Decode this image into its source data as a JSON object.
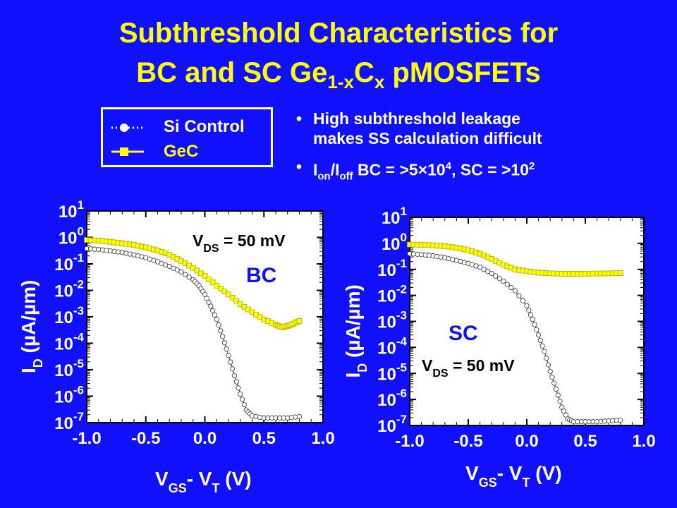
{
  "title": {
    "line1": "Subthreshold Characteristics for",
    "line2_pre": "BC and SC Ge",
    "line2_sub1": "1-x",
    "line2_mid": "C",
    "line2_sub2": "x",
    "line2_post": " pMOSFETs"
  },
  "colors": {
    "background": "#1010ff",
    "title": "#ffff00",
    "si_control": "#ffffff",
    "gec": "#ffff00"
  },
  "legend": {
    "items": [
      {
        "label": "Si Control",
        "marker": "circle",
        "color": "#ffffff"
      },
      {
        "label": "GeC",
        "marker": "square",
        "color": "#ffff00"
      }
    ]
  },
  "bullets": {
    "b1_line1": "High subthreshold leakage",
    "b1_line2": "makes SS calculation difficult",
    "b2_I1": "I",
    "b2_on": "on",
    "b2_slash": "/I",
    "b2_off": "off",
    "b2_text1": "  BC = >5×10",
    "b2_sup1": "4",
    "b2_text2": ", SC = >10",
    "b2_sup2": "2"
  },
  "chart_data": [
    {
      "type": "scatter",
      "panel_label": "BC",
      "annotation": {
        "V": "V",
        "sub": "DS",
        "rest": " = 50 mV"
      },
      "xlabel": {
        "a": "V",
        "a_sub": "GS",
        "b": "- V",
        "b_sub": "T",
        "c": " (V)"
      },
      "ylabel": {
        "a": "I",
        "a_sub": "D",
        "b": " (µA/µm)"
      },
      "xlim": [
        -1.0,
        1.0
      ],
      "xticks": [
        "-1.0",
        "-0.5",
        "0.0",
        "0.5",
        "1.0"
      ],
      "ylim_log10": [
        -7,
        1
      ],
      "yticks_exp": [
        "1",
        "0",
        "-1",
        "-2",
        "-3",
        "-4",
        "-5",
        "-6",
        "-7"
      ],
      "log_y": true,
      "series": [
        {
          "name": "Si Control",
          "marker": "circle",
          "x": [
            -1.0,
            -0.9,
            -0.8,
            -0.7,
            -0.6,
            -0.5,
            -0.4,
            -0.3,
            -0.2,
            -0.1,
            -0.05,
            0.0,
            0.05,
            0.1,
            0.15,
            0.2,
            0.25,
            0.3,
            0.35,
            0.4,
            0.5,
            0.6,
            0.7,
            0.8
          ],
          "y": [
            0.38,
            0.35,
            0.31,
            0.27,
            0.22,
            0.17,
            0.12,
            0.08,
            0.05,
            0.025,
            0.015,
            0.007,
            0.0025,
            0.0008,
            0.00018,
            3.5e-05,
            6e-06,
            1.2e-06,
            3e-07,
            1.8e-07,
            1.5e-07,
            1.5e-07,
            1.5e-07,
            1.7e-07
          ]
        },
        {
          "name": "GeC",
          "marker": "square",
          "x": [
            -1.0,
            -0.9,
            -0.8,
            -0.7,
            -0.6,
            -0.5,
            -0.4,
            -0.3,
            -0.2,
            -0.1,
            0.0,
            0.1,
            0.2,
            0.3,
            0.4,
            0.5,
            0.6,
            0.65,
            0.7,
            0.75,
            0.8
          ],
          "y": [
            0.8,
            0.75,
            0.68,
            0.6,
            0.52,
            0.42,
            0.32,
            0.22,
            0.13,
            0.07,
            0.035,
            0.015,
            0.007,
            0.003,
            0.0015,
            0.0008,
            0.0005,
            0.0004,
            0.00045,
            0.00055,
            0.0007
          ]
        }
      ]
    },
    {
      "type": "scatter",
      "panel_label": "SC",
      "annotation": {
        "V": "V",
        "sub": "DS",
        "rest": " = 50 mV"
      },
      "xlabel": {
        "a": "V",
        "a_sub": "GS",
        "b": "- V",
        "b_sub": "T",
        "c": " (V)"
      },
      "ylabel": {
        "a": "I",
        "a_sub": "D",
        "b": " (µA/µm)"
      },
      "xlim": [
        -1.0,
        1.0
      ],
      "xticks": [
        "-1.0",
        "-0.5",
        "0.0",
        "0.5",
        "1.0"
      ],
      "ylim_log10": [
        -7,
        1
      ],
      "yticks_exp": [
        "1",
        "0",
        "-1",
        "-2",
        "-3",
        "-4",
        "-5",
        "-6",
        "-7"
      ],
      "log_y": true,
      "series": [
        {
          "name": "Si Control",
          "marker": "circle",
          "x": [
            -1.0,
            -0.9,
            -0.8,
            -0.7,
            -0.6,
            -0.5,
            -0.4,
            -0.3,
            -0.2,
            -0.1,
            0.0,
            0.05,
            0.1,
            0.15,
            0.2,
            0.25,
            0.3,
            0.35,
            0.4,
            0.5,
            0.6,
            0.7,
            0.8
          ],
          "y": [
            0.4,
            0.37,
            0.33,
            0.28,
            0.22,
            0.17,
            0.12,
            0.07,
            0.035,
            0.015,
            0.004,
            0.0012,
            0.0003,
            7e-05,
            1.2e-05,
            2.5e-06,
            5e-07,
            1.8e-07,
            1.4e-07,
            1.4e-07,
            1.4e-07,
            1.5e-07,
            1.6e-07
          ]
        },
        {
          "name": "GeC",
          "marker": "square",
          "x": [
            -1.0,
            -0.9,
            -0.8,
            -0.7,
            -0.6,
            -0.5,
            -0.4,
            -0.3,
            -0.2,
            -0.1,
            0.0,
            0.1,
            0.2,
            0.3,
            0.4,
            0.5,
            0.6,
            0.7,
            0.8
          ],
          "y": [
            0.9,
            0.88,
            0.84,
            0.78,
            0.68,
            0.55,
            0.4,
            0.25,
            0.15,
            0.1,
            0.085,
            0.075,
            0.07,
            0.068,
            0.068,
            0.068,
            0.069,
            0.07,
            0.072
          ]
        }
      ]
    }
  ]
}
